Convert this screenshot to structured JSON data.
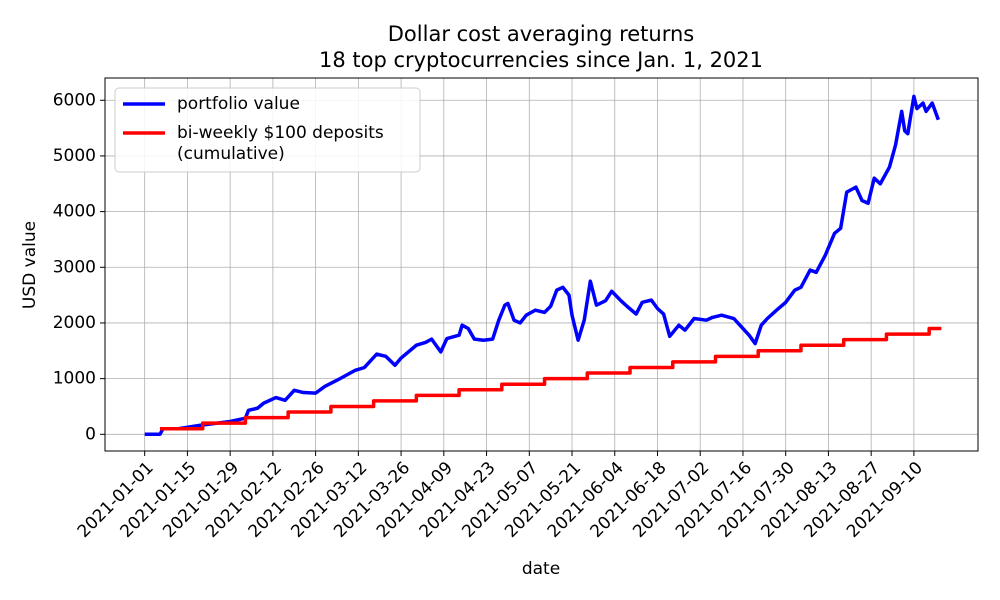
{
  "chart_data": {
    "type": "line",
    "title": "Dollar cost averaging returns",
    "subtitle": "18 top cryptocurrencies since Jan. 1, 2021",
    "xlabel": "date",
    "ylabel": "USD value",
    "xlim": [
      "2020-12-19",
      "2021-10-01"
    ],
    "xticks": [
      "2021-01-01",
      "2021-01-15",
      "2021-01-29",
      "2021-02-12",
      "2021-02-26",
      "2021-03-12",
      "2021-03-26",
      "2021-04-09",
      "2021-04-23",
      "2021-05-07",
      "2021-05-21",
      "2021-06-04",
      "2021-06-18",
      "2021-07-02",
      "2021-07-16",
      "2021-07-30",
      "2021-08-13",
      "2021-08-27",
      "2021-09-10"
    ],
    "ylim": [
      -300,
      6400
    ],
    "yticks": [
      0,
      1000,
      2000,
      3000,
      4000,
      5000,
      6000
    ],
    "grid": true,
    "legend": "upper left",
    "series": [
      {
        "name": "portfolio value",
        "color": "#0000ff",
        "drawstyle": "default",
        "x": [
          "2021-01-01",
          "2021-01-06",
          "2021-01-07",
          "2021-01-12",
          "2021-01-19",
          "2021-01-29",
          "2021-02-03",
          "2021-02-04",
          "2021-02-07",
          "2021-02-09",
          "2021-02-13",
          "2021-02-16",
          "2021-02-19",
          "2021-02-22",
          "2021-02-26",
          "2021-03-01",
          "2021-03-06",
          "2021-03-11",
          "2021-03-14",
          "2021-03-18",
          "2021-03-21",
          "2021-03-24",
          "2021-03-26",
          "2021-03-31",
          "2021-04-03",
          "2021-04-05",
          "2021-04-08",
          "2021-04-10",
          "2021-04-14",
          "2021-04-15",
          "2021-04-17",
          "2021-04-19",
          "2021-04-22",
          "2021-04-25",
          "2021-04-27",
          "2021-04-29",
          "2021-04-30",
          "2021-05-02",
          "2021-05-04",
          "2021-05-06",
          "2021-05-09",
          "2021-05-12",
          "2021-05-14",
          "2021-05-16",
          "2021-05-18",
          "2021-05-20",
          "2021-05-21",
          "2021-05-23",
          "2021-05-25",
          "2021-05-27",
          "2021-05-29",
          "2021-06-01",
          "2021-06-03",
          "2021-06-06",
          "2021-06-08",
          "2021-06-11",
          "2021-06-13",
          "2021-06-16",
          "2021-06-18",
          "2021-06-20",
          "2021-06-22",
          "2021-06-25",
          "2021-06-27",
          "2021-06-30",
          "2021-07-04",
          "2021-07-06",
          "2021-07-09",
          "2021-07-13",
          "2021-07-15",
          "2021-07-18",
          "2021-07-20",
          "2021-07-22",
          "2021-07-24",
          "2021-07-27",
          "2021-07-30",
          "2021-08-02",
          "2021-08-04",
          "2021-08-07",
          "2021-08-09",
          "2021-08-12",
          "2021-08-15",
          "2021-08-17",
          "2021-08-19",
          "2021-08-22",
          "2021-08-24",
          "2021-08-26",
          "2021-08-28",
          "2021-08-30",
          "2021-09-02",
          "2021-09-04",
          "2021-09-06",
          "2021-09-07",
          "2021-09-08",
          "2021-09-10",
          "2021-09-11",
          "2021-09-13",
          "2021-09-14",
          "2021-09-16",
          "2021-09-18"
        ],
        "values": [
          0,
          0,
          100,
          100,
          160,
          230,
          290,
          430,
          470,
          560,
          660,
          610,
          790,
          750,
          740,
          860,
          1000,
          1150,
          1200,
          1440,
          1400,
          1240,
          1370,
          1600,
          1650,
          1710,
          1480,
          1720,
          1780,
          1960,
          1900,
          1710,
          1690,
          1710,
          2050,
          2320,
          2350,
          2050,
          2000,
          2140,
          2230,
          2190,
          2300,
          2590,
          2640,
          2500,
          2140,
          1690,
          2050,
          2750,
          2320,
          2400,
          2570,
          2400,
          2300,
          2160,
          2370,
          2410,
          2260,
          2160,
          1760,
          1960,
          1870,
          2080,
          2050,
          2100,
          2140,
          2080,
          1960,
          1780,
          1630,
          1960,
          2080,
          2230,
          2370,
          2590,
          2640,
          2950,
          2910,
          3220,
          3610,
          3700,
          4350,
          4440,
          4200,
          4150,
          4600,
          4500,
          4800,
          5200,
          5800,
          5450,
          5400,
          6070,
          5850,
          5950,
          5800,
          5950,
          5650
        ]
      },
      {
        "name": "bi-weekly $100 deposits\n(cumulative)",
        "color": "#ff0000",
        "drawstyle": "steps-post",
        "x": [
          "2021-01-06",
          "2021-01-20",
          "2021-02-03",
          "2021-02-17",
          "2021-03-03",
          "2021-03-17",
          "2021-03-31",
          "2021-04-14",
          "2021-04-28",
          "2021-05-12",
          "2021-05-26",
          "2021-06-09",
          "2021-06-23",
          "2021-07-07",
          "2021-07-21",
          "2021-08-04",
          "2021-08-18",
          "2021-09-01",
          "2021-09-15",
          "2021-09-19"
        ],
        "values": [
          100,
          200,
          300,
          400,
          500,
          600,
          700,
          800,
          900,
          1000,
          1100,
          1200,
          1300,
          1400,
          1500,
          1600,
          1700,
          1800,
          1900,
          1900
        ]
      }
    ]
  }
}
